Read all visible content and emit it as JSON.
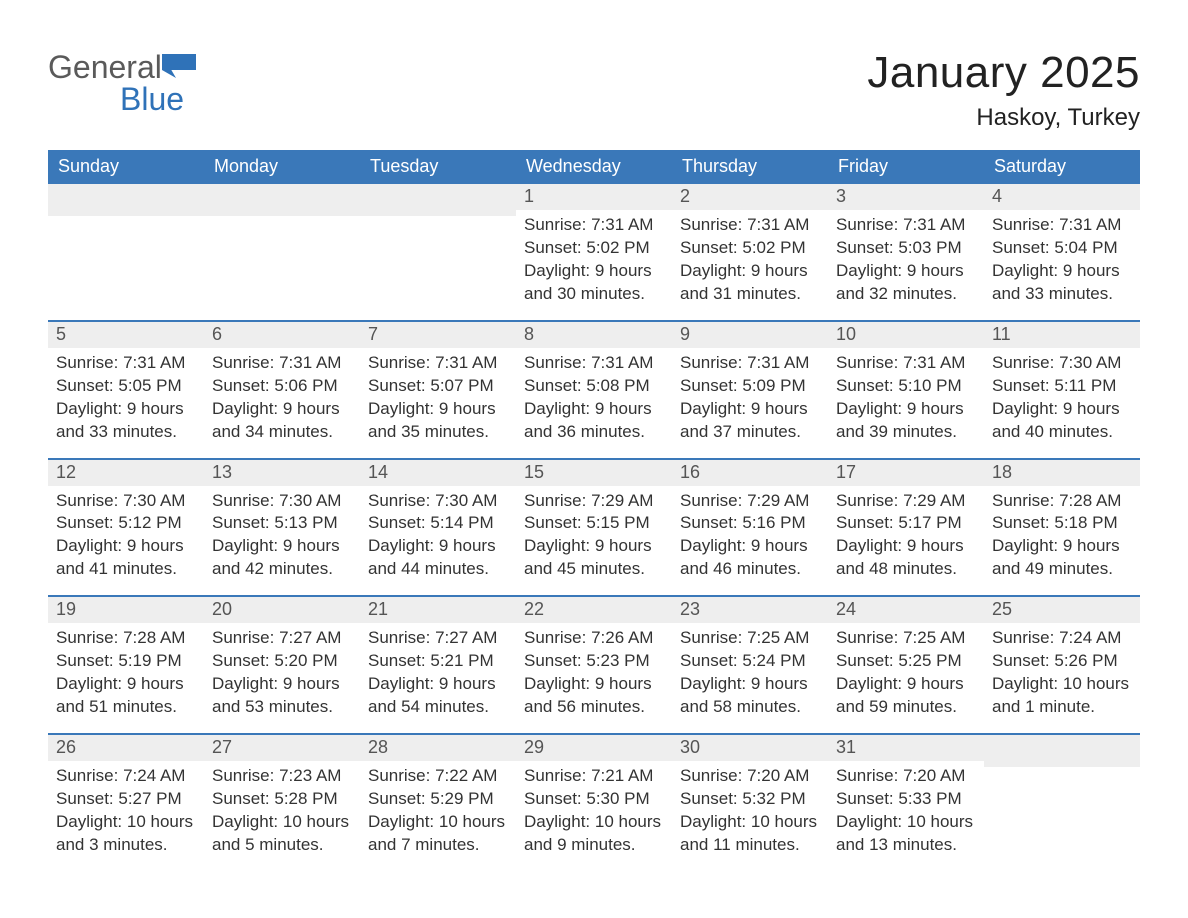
{
  "logo": {
    "text_gray": "General",
    "text_blue": "Blue",
    "shape_color": "#2f72b8"
  },
  "header": {
    "month_title": "January 2025",
    "location": "Haskoy, Turkey"
  },
  "colors": {
    "header_bg": "#3a78b9",
    "header_text": "#ffffff",
    "daybar_bg": "#eeeeee",
    "daybar_text": "#555555",
    "body_text": "#333333",
    "rule": "#3a78b9"
  },
  "weekdays": [
    "Sunday",
    "Monday",
    "Tuesday",
    "Wednesday",
    "Thursday",
    "Friday",
    "Saturday"
  ],
  "weeks": [
    [
      {
        "blank": true
      },
      {
        "blank": true
      },
      {
        "blank": true
      },
      {
        "day": "1",
        "sunrise": "Sunrise: 7:31 AM",
        "sunset": "Sunset: 5:02 PM",
        "daylight1": "Daylight: 9 hours",
        "daylight2": "and 30 minutes."
      },
      {
        "day": "2",
        "sunrise": "Sunrise: 7:31 AM",
        "sunset": "Sunset: 5:02 PM",
        "daylight1": "Daylight: 9 hours",
        "daylight2": "and 31 minutes."
      },
      {
        "day": "3",
        "sunrise": "Sunrise: 7:31 AM",
        "sunset": "Sunset: 5:03 PM",
        "daylight1": "Daylight: 9 hours",
        "daylight2": "and 32 minutes."
      },
      {
        "day": "4",
        "sunrise": "Sunrise: 7:31 AM",
        "sunset": "Sunset: 5:04 PM",
        "daylight1": "Daylight: 9 hours",
        "daylight2": "and 33 minutes."
      }
    ],
    [
      {
        "day": "5",
        "sunrise": "Sunrise: 7:31 AM",
        "sunset": "Sunset: 5:05 PM",
        "daylight1": "Daylight: 9 hours",
        "daylight2": "and 33 minutes."
      },
      {
        "day": "6",
        "sunrise": "Sunrise: 7:31 AM",
        "sunset": "Sunset: 5:06 PM",
        "daylight1": "Daylight: 9 hours",
        "daylight2": "and 34 minutes."
      },
      {
        "day": "7",
        "sunrise": "Sunrise: 7:31 AM",
        "sunset": "Sunset: 5:07 PM",
        "daylight1": "Daylight: 9 hours",
        "daylight2": "and 35 minutes."
      },
      {
        "day": "8",
        "sunrise": "Sunrise: 7:31 AM",
        "sunset": "Sunset: 5:08 PM",
        "daylight1": "Daylight: 9 hours",
        "daylight2": "and 36 minutes."
      },
      {
        "day": "9",
        "sunrise": "Sunrise: 7:31 AM",
        "sunset": "Sunset: 5:09 PM",
        "daylight1": "Daylight: 9 hours",
        "daylight2": "and 37 minutes."
      },
      {
        "day": "10",
        "sunrise": "Sunrise: 7:31 AM",
        "sunset": "Sunset: 5:10 PM",
        "daylight1": "Daylight: 9 hours",
        "daylight2": "and 39 minutes."
      },
      {
        "day": "11",
        "sunrise": "Sunrise: 7:30 AM",
        "sunset": "Sunset: 5:11 PM",
        "daylight1": "Daylight: 9 hours",
        "daylight2": "and 40 minutes."
      }
    ],
    [
      {
        "day": "12",
        "sunrise": "Sunrise: 7:30 AM",
        "sunset": "Sunset: 5:12 PM",
        "daylight1": "Daylight: 9 hours",
        "daylight2": "and 41 minutes."
      },
      {
        "day": "13",
        "sunrise": "Sunrise: 7:30 AM",
        "sunset": "Sunset: 5:13 PM",
        "daylight1": "Daylight: 9 hours",
        "daylight2": "and 42 minutes."
      },
      {
        "day": "14",
        "sunrise": "Sunrise: 7:30 AM",
        "sunset": "Sunset: 5:14 PM",
        "daylight1": "Daylight: 9 hours",
        "daylight2": "and 44 minutes."
      },
      {
        "day": "15",
        "sunrise": "Sunrise: 7:29 AM",
        "sunset": "Sunset: 5:15 PM",
        "daylight1": "Daylight: 9 hours",
        "daylight2": "and 45 minutes."
      },
      {
        "day": "16",
        "sunrise": "Sunrise: 7:29 AM",
        "sunset": "Sunset: 5:16 PM",
        "daylight1": "Daylight: 9 hours",
        "daylight2": "and 46 minutes."
      },
      {
        "day": "17",
        "sunrise": "Sunrise: 7:29 AM",
        "sunset": "Sunset: 5:17 PM",
        "daylight1": "Daylight: 9 hours",
        "daylight2": "and 48 minutes."
      },
      {
        "day": "18",
        "sunrise": "Sunrise: 7:28 AM",
        "sunset": "Sunset: 5:18 PM",
        "daylight1": "Daylight: 9 hours",
        "daylight2": "and 49 minutes."
      }
    ],
    [
      {
        "day": "19",
        "sunrise": "Sunrise: 7:28 AM",
        "sunset": "Sunset: 5:19 PM",
        "daylight1": "Daylight: 9 hours",
        "daylight2": "and 51 minutes."
      },
      {
        "day": "20",
        "sunrise": "Sunrise: 7:27 AM",
        "sunset": "Sunset: 5:20 PM",
        "daylight1": "Daylight: 9 hours",
        "daylight2": "and 53 minutes."
      },
      {
        "day": "21",
        "sunrise": "Sunrise: 7:27 AM",
        "sunset": "Sunset: 5:21 PM",
        "daylight1": "Daylight: 9 hours",
        "daylight2": "and 54 minutes."
      },
      {
        "day": "22",
        "sunrise": "Sunrise: 7:26 AM",
        "sunset": "Sunset: 5:23 PM",
        "daylight1": "Daylight: 9 hours",
        "daylight2": "and 56 minutes."
      },
      {
        "day": "23",
        "sunrise": "Sunrise: 7:25 AM",
        "sunset": "Sunset: 5:24 PM",
        "daylight1": "Daylight: 9 hours",
        "daylight2": "and 58 minutes."
      },
      {
        "day": "24",
        "sunrise": "Sunrise: 7:25 AM",
        "sunset": "Sunset: 5:25 PM",
        "daylight1": "Daylight: 9 hours",
        "daylight2": "and 59 minutes."
      },
      {
        "day": "25",
        "sunrise": "Sunrise: 7:24 AM",
        "sunset": "Sunset: 5:26 PM",
        "daylight1": "Daylight: 10 hours",
        "daylight2": "and 1 minute."
      }
    ],
    [
      {
        "day": "26",
        "sunrise": "Sunrise: 7:24 AM",
        "sunset": "Sunset: 5:27 PM",
        "daylight1": "Daylight: 10 hours",
        "daylight2": "and 3 minutes."
      },
      {
        "day": "27",
        "sunrise": "Sunrise: 7:23 AM",
        "sunset": "Sunset: 5:28 PM",
        "daylight1": "Daylight: 10 hours",
        "daylight2": "and 5 minutes."
      },
      {
        "day": "28",
        "sunrise": "Sunrise: 7:22 AM",
        "sunset": "Sunset: 5:29 PM",
        "daylight1": "Daylight: 10 hours",
        "daylight2": "and 7 minutes."
      },
      {
        "day": "29",
        "sunrise": "Sunrise: 7:21 AM",
        "sunset": "Sunset: 5:30 PM",
        "daylight1": "Daylight: 10 hours",
        "daylight2": "and 9 minutes."
      },
      {
        "day": "30",
        "sunrise": "Sunrise: 7:20 AM",
        "sunset": "Sunset: 5:32 PM",
        "daylight1": "Daylight: 10 hours",
        "daylight2": "and 11 minutes."
      },
      {
        "day": "31",
        "sunrise": "Sunrise: 7:20 AM",
        "sunset": "Sunset: 5:33 PM",
        "daylight1": "Daylight: 10 hours",
        "daylight2": "and 13 minutes."
      },
      {
        "blank": true
      }
    ]
  ]
}
